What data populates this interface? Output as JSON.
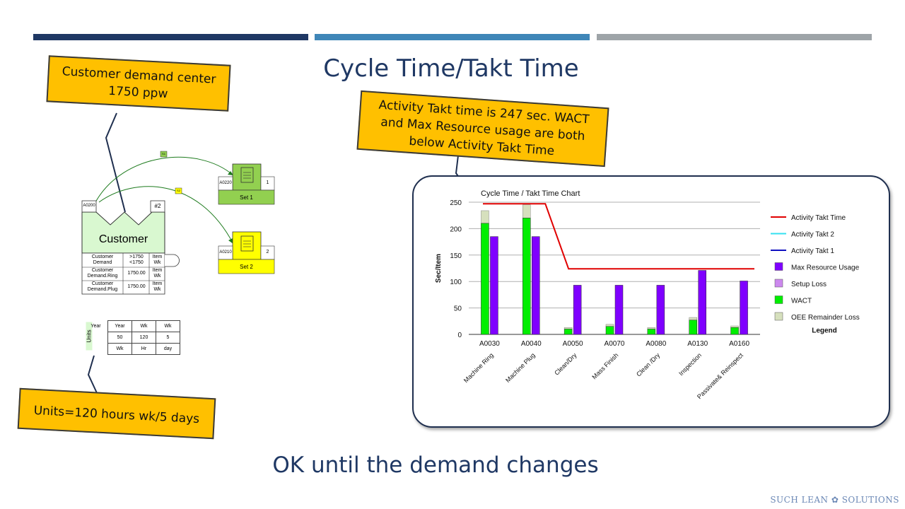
{
  "colors": {
    "bar1": "#1f3864",
    "bar2": "#3f86b8",
    "bar3": "#9ea4a8",
    "callout": "#ffc000"
  },
  "title": "Cycle Time/Takt Time",
  "subtitle": "OK until the demand changes",
  "callouts": {
    "customer": [
      "Customer demand center",
      "1750 ppw"
    ],
    "takt": [
      "Activity Takt time is 247 sec. WACT",
      "and Max Resource usage are both",
      "below Activity Takt Time"
    ],
    "units": "Units=120 hours wk/5 days"
  },
  "vsm": {
    "customer_label": "Customer",
    "customer_id": "A0200",
    "customer_num": "#2",
    "set1": {
      "id": "A0220",
      "num": "1",
      "label": "Set 1",
      "flag": "S1"
    },
    "set2": {
      "id": "A0210",
      "num": "2",
      "label": "Set 2",
      "flag": "S2"
    },
    "rows": [
      {
        "name": "Customer Demand",
        "value": ">1750 <1750",
        "unit": "Item Wk"
      },
      {
        "name": "Customer Demand.Ring",
        "value": "1750.00",
        "unit": "Item Wk"
      },
      {
        "name": "Customer Demand.Plug",
        "value": "1750.00",
        "unit": "Item Wk"
      }
    ]
  },
  "units_table": {
    "side_label": "Units",
    "rows": [
      [
        "Year",
        "Wk",
        "Wk"
      ],
      [
        "50",
        "120",
        "5"
      ],
      [
        "Wk",
        "Hr",
        "day"
      ]
    ]
  },
  "chart_data": {
    "type": "bar",
    "title": "Cycle Time / Takt Time Chart",
    "ylabel": "Sec/Item",
    "ylim": [
      0,
      250
    ],
    "yticks": [
      0,
      50,
      100,
      150,
      200,
      250
    ],
    "categories": [
      "A0030",
      "A0040",
      "A0050",
      "A0070",
      "A0080",
      "A0130",
      "A0160"
    ],
    "category_names": [
      "Machine Ring",
      "Machine Plug",
      "Clean/Dry",
      "Mass Finish",
      "Clean /Dry",
      "Inspection",
      "Passivate& Reinspect"
    ],
    "series": [
      {
        "name": "WACT",
        "color": "#00ee00",
        "values": [
          210,
          220,
          10,
          15,
          10,
          27,
          13
        ]
      },
      {
        "name": "OEE Remainder Loss",
        "color": "#d6e0bd",
        "values": [
          24,
          25,
          3,
          4,
          3,
          5,
          3
        ]
      },
      {
        "name": "Max Resource Usage",
        "color": "#7f00ff",
        "values": [
          185,
          185,
          93,
          93,
          93,
          121,
          101
        ]
      }
    ],
    "takt_line": {
      "name": "Activity Takt Time",
      "color": "#e00000",
      "values": [
        247,
        247,
        124,
        124,
        124,
        124,
        124
      ]
    },
    "legend_title": "Legend",
    "legend": [
      {
        "label": "Activity Takt Time",
        "kind": "line",
        "color": "#e00000"
      },
      {
        "label": "Activity Takt 2",
        "kind": "line",
        "color": "#33e0f0"
      },
      {
        "label": "Activity Takt 1",
        "kind": "line",
        "color": "#1010c0"
      },
      {
        "label": "Max Resource Usage",
        "kind": "box",
        "color": "#7f00ff"
      },
      {
        "label": "Setup Loss",
        "kind": "box",
        "color": "#cc88ee"
      },
      {
        "label": "WACT",
        "kind": "box",
        "color": "#00ee00"
      },
      {
        "label": "OEE Remainder Loss",
        "kind": "box",
        "color": "#d6e0bd"
      }
    ]
  },
  "brand": "SUCH LEAN ✿ SOLUTIONS"
}
